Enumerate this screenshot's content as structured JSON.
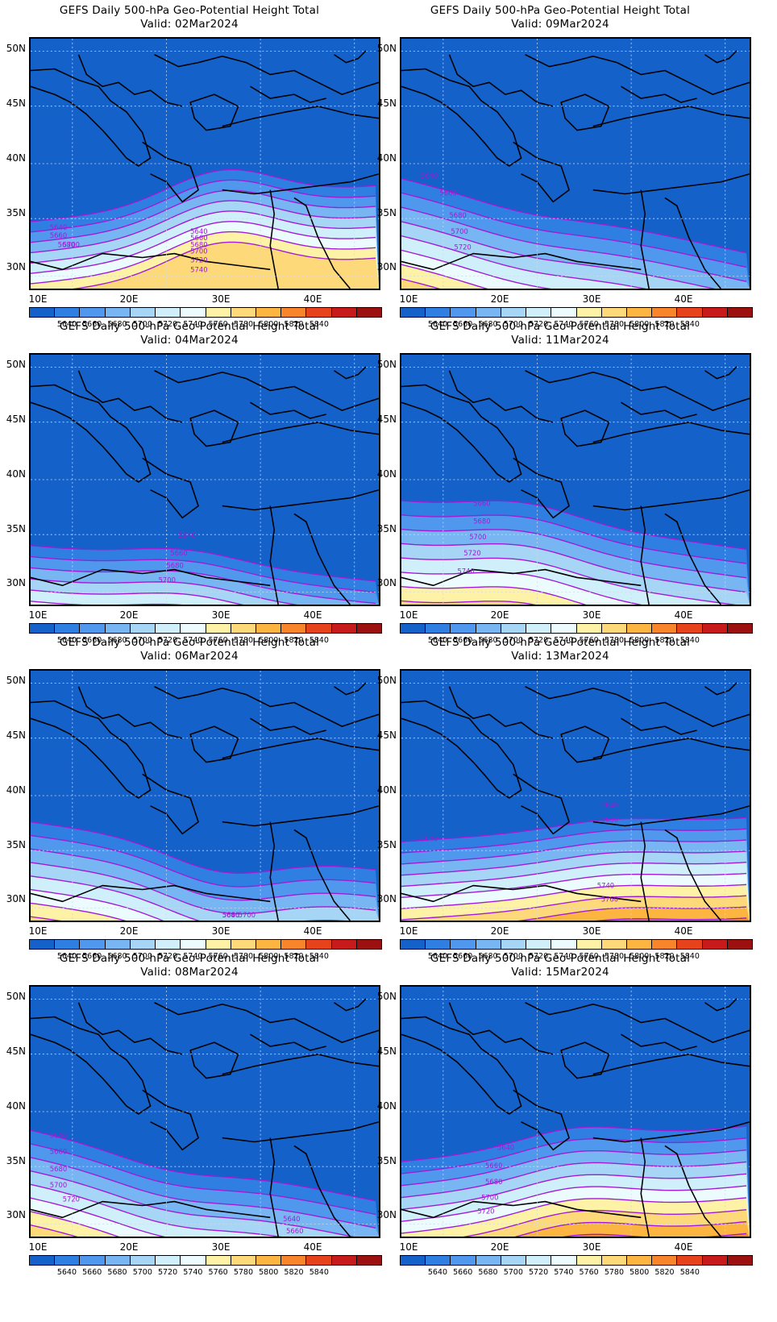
{
  "map_title": "GEFS Daily 500-hPa Geo-Potential Height Total",
  "lat_labels": [
    "50N",
    "45N",
    "40N",
    "35N",
    "30N"
  ],
  "lon_labels": [
    "10E",
    "20E",
    "30E",
    "40E"
  ],
  "colorbar": {
    "colors": [
      "#1461c9",
      "#2f7fe2",
      "#4f98ee",
      "#78b6f3",
      "#a6d5f6",
      "#cff0fb",
      "#ecfcfe",
      "#fdf2a6",
      "#fdd97a",
      "#fbb540",
      "#f8852c",
      "#e6421c",
      "#c71a1a",
      "#9c1010"
    ],
    "labels": [
      "5640",
      "5660",
      "5680",
      "5700",
      "5720",
      "5740",
      "5760",
      "5780",
      "5800",
      "5820",
      "5840"
    ]
  },
  "contour_color": "#a21bd6",
  "panels": [
    {
      "valid": "Valid: 02Mar2024",
      "contour_labels": [
        "5640",
        "5660",
        "5680",
        "5700",
        "5640",
        "5660",
        "5680",
        "5700",
        "5720",
        "5740"
      ]
    },
    {
      "valid": "Valid: 09Mar2024",
      "contour_labels": [
        "5640",
        "5660",
        "5680",
        "5700",
        "5720"
      ]
    },
    {
      "valid": "Valid: 04Mar2024",
      "contour_labels": [
        "5640",
        "5660",
        "5680",
        "5700"
      ]
    },
    {
      "valid": "Valid: 11Mar2024",
      "contour_labels": [
        "5660",
        "5680",
        "5700",
        "5720",
        "5740"
      ]
    },
    {
      "valid": "Valid: 06Mar2024",
      "contour_labels": [
        "5640",
        "5660",
        "5680",
        "5700"
      ]
    },
    {
      "valid": "Valid: 13Mar2024",
      "contour_labels": [
        "5640",
        "5660",
        "5640",
        "5740",
        "5760"
      ]
    },
    {
      "valid": "Valid: 08Mar2024",
      "contour_labels": [
        "5640",
        "5660",
        "5680",
        "5700",
        "5720",
        "5640",
        "5660"
      ]
    },
    {
      "valid": "Valid: 15Mar2024",
      "contour_labels": [
        "5640",
        "5660",
        "5680",
        "5700",
        "5720"
      ]
    }
  ]
}
